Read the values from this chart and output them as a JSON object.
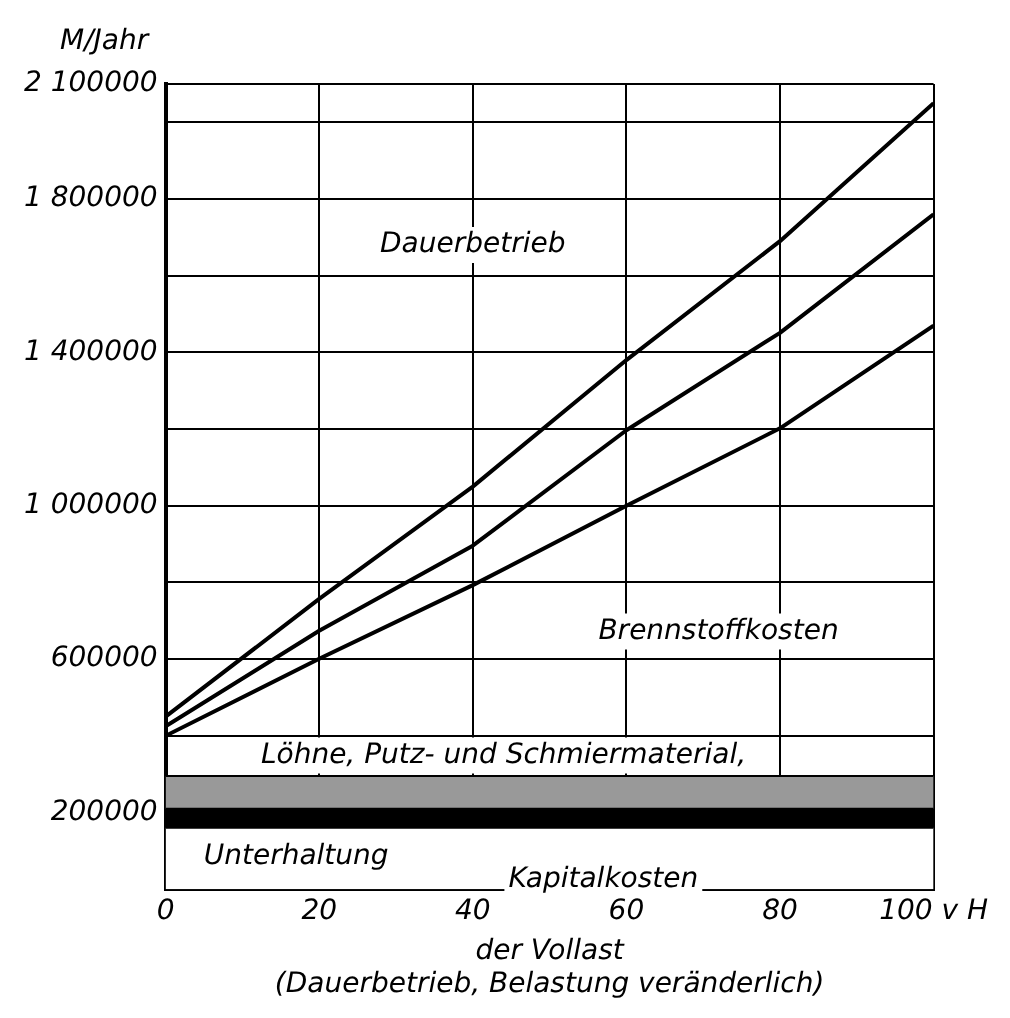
{
  "chart_data": {
    "type": "area",
    "stacked": true,
    "xlabel": "der Vollast\n(Dauerbetrieb, Belastung veränderlich)",
    "ylabel": "M/Jahr",
    "x": [
      0,
      20,
      40,
      60,
      80,
      100
    ],
    "xlim": [
      0,
      100
    ],
    "xticks": [
      0,
      20,
      40,
      60,
      80,
      {
        "value": 100,
        "label": "100 v H"
      }
    ],
    "ylim": [
      0,
      2100000
    ],
    "yticks": [
      {
        "value": 200000,
        "label": "200000"
      },
      {
        "value": 400000,
        "label": null
      },
      {
        "value": 600000,
        "label": "600000"
      },
      {
        "value": 800000,
        "label": null
      },
      {
        "value": 1000000,
        "label": "1 000000"
      },
      {
        "value": 1200000,
        "label": null
      },
      {
        "value": 1400000,
        "label": "1 400000"
      },
      {
        "value": 1600000,
        "label": null
      },
      {
        "value": 1800000,
        "label": "1 800000"
      },
      {
        "value": 2000000,
        "label": null
      },
      {
        "value": 2100000,
        "label": "2 100000"
      }
    ],
    "grid": true,
    "legend": false,
    "series": [
      {
        "color": "#ffffff",
        "values": [
          160000,
          160000,
          160000,
          160000,
          160000,
          160000
        ]
      },
      {
        "color": "#000000",
        "values": [
          50000,
          50000,
          50000,
          50000,
          50000,
          50000
        ]
      },
      {
        "color": "#999999",
        "values": [
          85000,
          85000,
          85000,
          85000,
          85000,
          85000
        ]
      },
      {
        "type": "line",
        "color": "#000000",
        "values": [
          450000,
          757000,
          1050000,
          1380000,
          1690000,
          2050000
        ]
      },
      {
        "type": "line",
        "color": "#000000",
        "values": [
          425000,
          674000,
          896000,
          1197000,
          1451000,
          1760000
        ]
      },
      {
        "type": "line",
        "color": "#000000",
        "values": [
          400000,
          601000,
          793000,
          1000000,
          1202000,
          1470000
        ]
      }
    ],
    "annotations": [
      "Dauerbetrieb",
      "Brennstoffkosten",
      "Löhne, Putz- und Schmiermaterial,",
      "Unterhaltung",
      "Kapitalkosten"
    ]
  }
}
